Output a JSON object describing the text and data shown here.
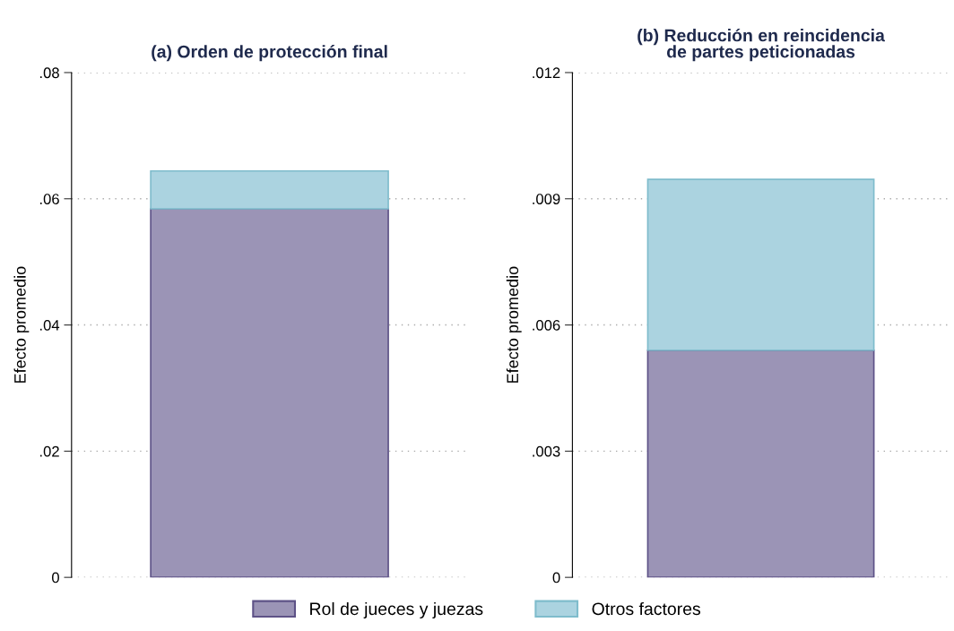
{
  "chart_data": [
    {
      "type": "bar",
      "title": "(a) Orden de protección final",
      "ylabel": "Efecto promedio",
      "categories": [
        null
      ],
      "stacked": true,
      "series": [
        {
          "name": "Rol de jueces y juezas",
          "color": "#9b94b6",
          "values": [
            0.0584
          ]
        },
        {
          "name": "Otros factores",
          "color": "#abd3e0",
          "values": [
            0.006
          ]
        }
      ],
      "ylim": [
        0,
        0.08
      ],
      "yticks": [
        0,
        {
          "value": 0.02,
          "label": ".02"
        },
        {
          "value": 0.04,
          "label": ".04"
        },
        {
          "value": 0.06,
          "label": ".06"
        },
        {
          "value": 0.08,
          "label": ".08"
        }
      ],
      "grid": "y",
      "legend": "bottom"
    },
    {
      "type": "bar",
      "title": "(b) Reducción en reincidencia\nde partes peticionadas",
      "ylabel": "Efecto promedio",
      "categories": [
        null
      ],
      "stacked": true,
      "series": [
        {
          "color": "#9b94b6",
          "values": [
            0.0054
          ]
        },
        {
          "color": "#abd3e0",
          "values": [
            0.00406
          ]
        }
      ],
      "ylim": [
        0,
        0.012
      ],
      "yticks": [
        0,
        {
          "value": 0.003,
          "label": ".003"
        },
        {
          "value": 0.006,
          "label": ".006"
        },
        {
          "value": 0.009,
          "label": ".009"
        },
        {
          "value": 0.012,
          "label": ".012"
        }
      ],
      "grid": "y"
    }
  ]
}
